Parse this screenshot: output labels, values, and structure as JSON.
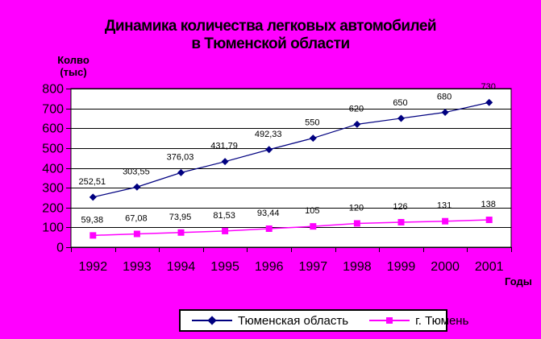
{
  "colors": {
    "background": "#FF00FF",
    "plot_background": "#FFFFFF",
    "axis_and_grid": "#000000",
    "text": "#000000",
    "series_oblast": "#000080",
    "series_city": "#FF00FF",
    "legend_background": "#FFFFFF",
    "legend_border": "#000000"
  },
  "title": {
    "line1": "Динамика количества легковых автомобилей",
    "line2": "в Тюменской области"
  },
  "y_axis": {
    "title_line1": "Колво",
    "title_line2": "(тыс)"
  },
  "x_axis": {
    "title": "Годы"
  },
  "legend": {
    "items": [
      {
        "label": "Тюменская область",
        "marker": "diamond",
        "color": "#000080"
      },
      {
        "label": "г. Тюмень",
        "marker": "square",
        "color": "#FF00FF"
      }
    ]
  },
  "chart_data": {
    "type": "line",
    "title": "Динамика количества легковых автомобилей в Тюменской области",
    "xlabel": "Годы",
    "ylabel": "Колво (тыс)",
    "categories": [
      "1992",
      "1993",
      "1994",
      "1995",
      "1996",
      "1997",
      "1998",
      "1999",
      "2000",
      "2001"
    ],
    "series": [
      {
        "name": "Тюменская область",
        "color": "#000080",
        "marker": "diamond",
        "values": [
          252.51,
          303.55,
          376.03,
          431.79,
          492.33,
          550,
          620,
          650,
          680,
          730
        ],
        "labels": [
          "252,51",
          "303,55",
          "376,03",
          "431,79",
          "492,33",
          "550",
          "620",
          "650",
          "680",
          "730"
        ]
      },
      {
        "name": "г. Тюмень",
        "color": "#FF00FF",
        "marker": "square",
        "values": [
          59.38,
          67.08,
          73.95,
          81.53,
          93.44,
          105,
          120,
          126,
          131,
          138
        ],
        "labels": [
          "59,38",
          "67,08",
          "73,95",
          "81,53",
          "93,44",
          "105",
          "120",
          "126",
          "131",
          "138"
        ]
      }
    ],
    "ylim": [
      0,
      800
    ],
    "y_ticks": [
      0,
      100,
      200,
      300,
      400,
      500,
      600,
      700,
      800
    ],
    "grid": "horizontal",
    "legend_position": "bottom",
    "data_labels": true
  }
}
